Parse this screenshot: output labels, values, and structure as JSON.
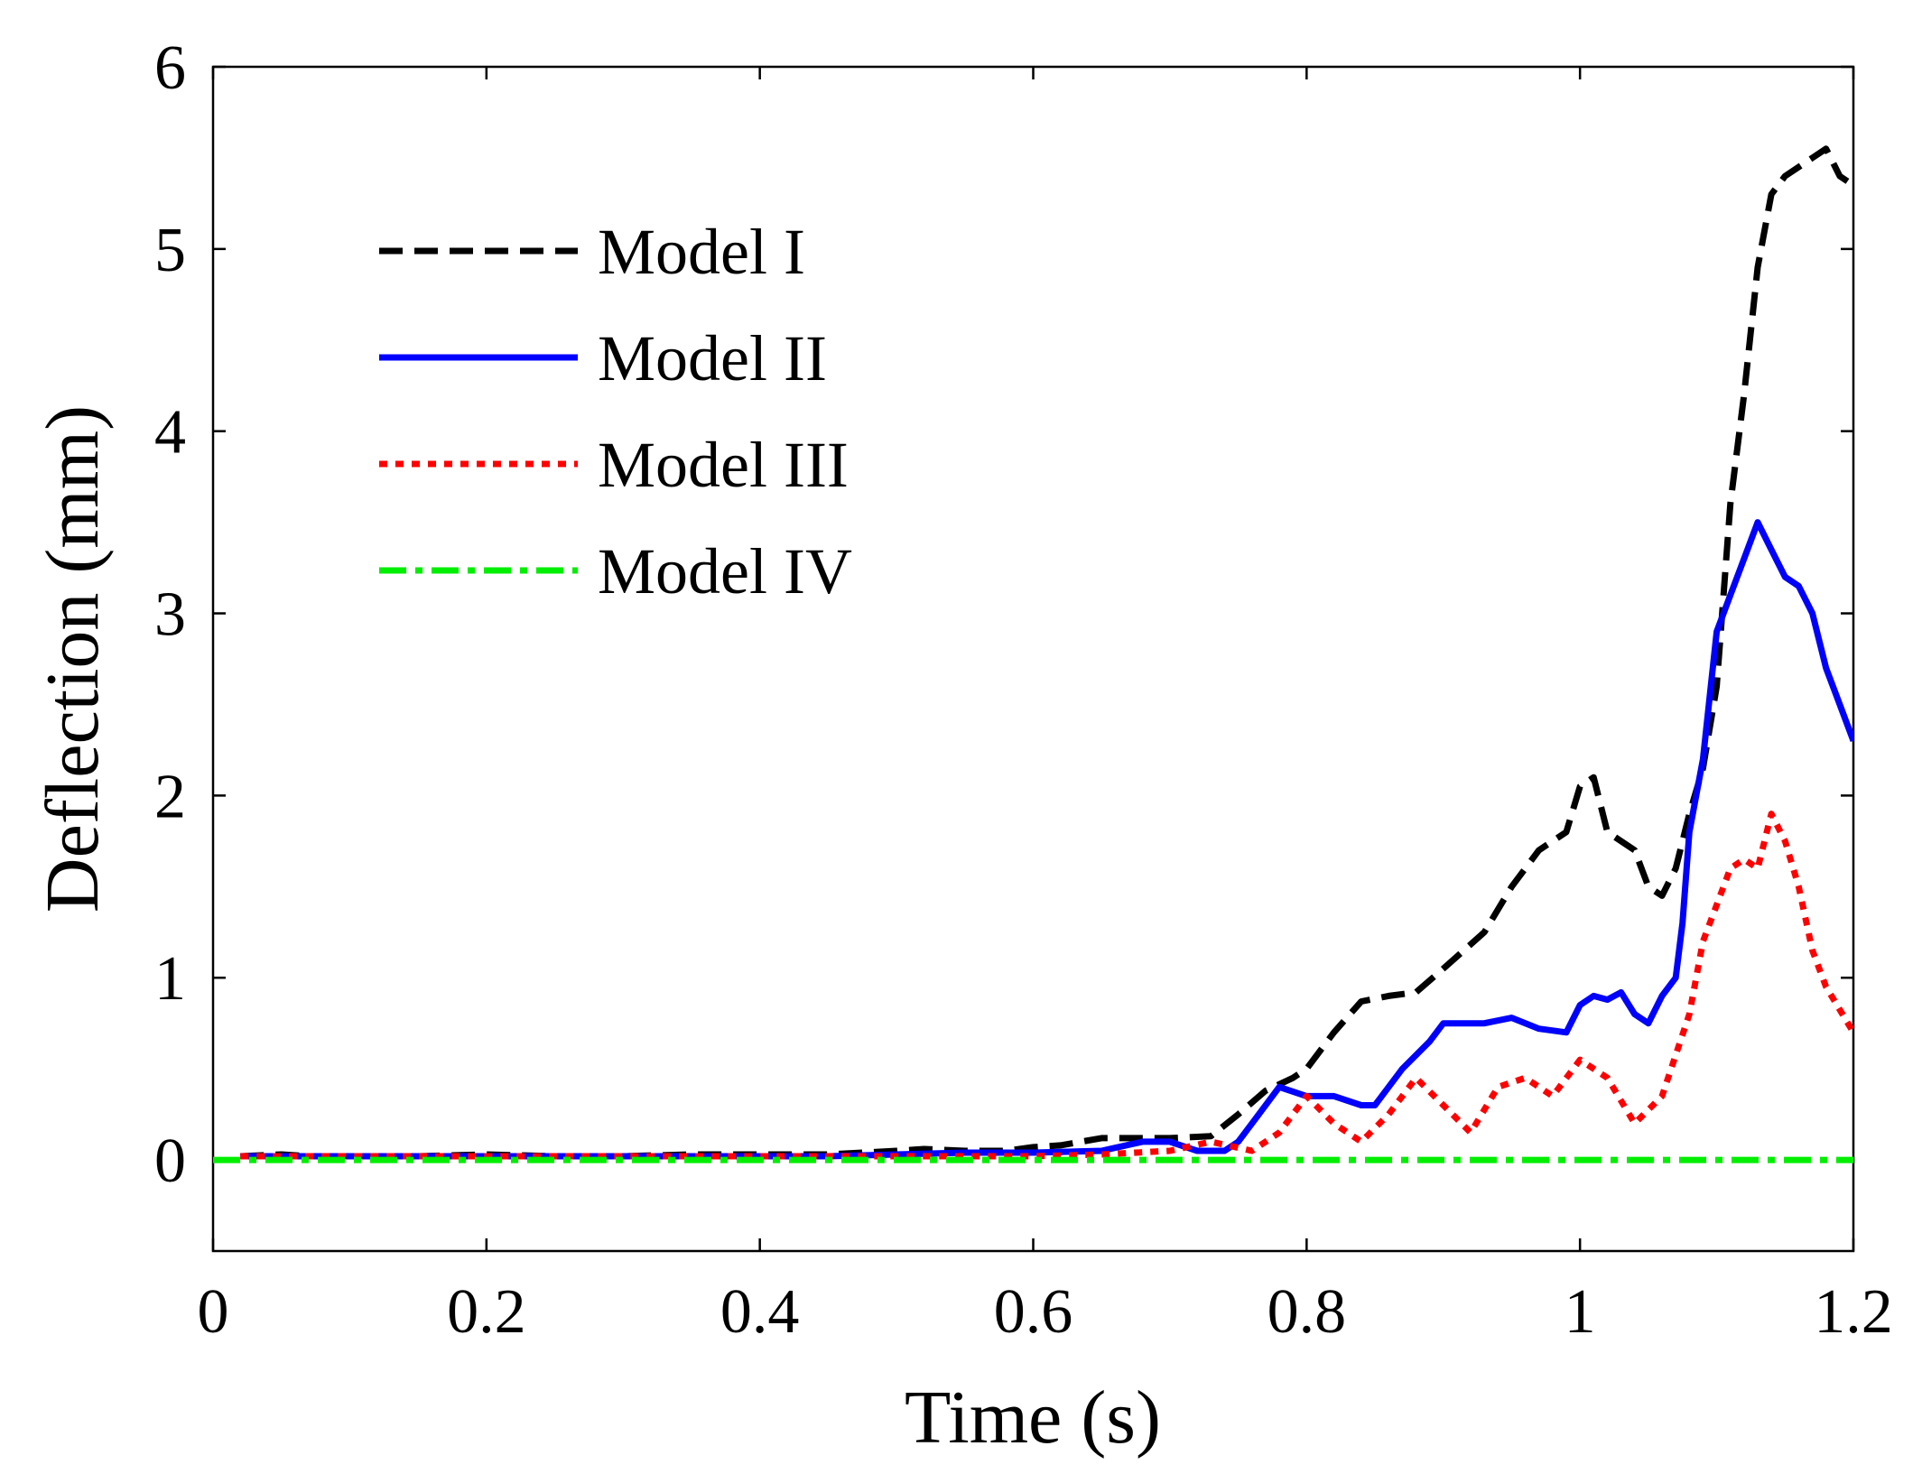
{
  "chart_data": {
    "type": "line",
    "title": "",
    "xlabel": "Time (s)",
    "ylabel": "Deflection (mm)",
    "xlim": [
      0,
      1.2
    ],
    "ylim": [
      -0.5,
      6
    ],
    "xticks": [
      0,
      0.2,
      0.4,
      0.6,
      0.8,
      1,
      1.2
    ],
    "xtick_labels": [
      "0",
      "0.2",
      "0.4",
      "0.6",
      "0.8",
      "1",
      "1.2"
    ],
    "yticks": [
      0,
      1,
      2,
      3,
      4,
      5,
      6
    ],
    "ytick_labels": [
      "0",
      "1",
      "2",
      "3",
      "4",
      "5",
      "6"
    ],
    "grid": false,
    "legend_position": "upper-left",
    "series": [
      {
        "name": "Model I",
        "color": "#000000",
        "style": "dashed",
        "x": [
          0.02,
          0.05,
          0.07,
          0.1,
          0.15,
          0.2,
          0.25,
          0.3,
          0.35,
          0.4,
          0.45,
          0.5,
          0.52,
          0.55,
          0.58,
          0.6,
          0.62,
          0.65,
          0.7,
          0.73,
          0.75,
          0.77,
          0.79,
          0.8,
          0.82,
          0.84,
          0.86,
          0.88,
          0.9,
          0.93,
          0.95,
          0.97,
          0.99,
          1.0,
          1.01,
          1.02,
          1.04,
          1.05,
          1.06,
          1.07,
          1.08,
          1.09,
          1.1,
          1.11,
          1.12,
          1.13,
          1.14,
          1.15,
          1.17,
          1.18,
          1.19,
          1.2
        ],
        "y": [
          0.02,
          0.03,
          0.02,
          0.02,
          0.02,
          0.03,
          0.02,
          0.02,
          0.03,
          0.03,
          0.03,
          0.05,
          0.06,
          0.05,
          0.05,
          0.07,
          0.08,
          0.12,
          0.12,
          0.13,
          0.25,
          0.38,
          0.45,
          0.5,
          0.7,
          0.87,
          0.9,
          0.92,
          1.05,
          1.25,
          1.5,
          1.7,
          1.8,
          2.05,
          2.1,
          1.8,
          1.7,
          1.5,
          1.45,
          1.6,
          1.9,
          2.15,
          2.6,
          3.6,
          4.2,
          4.9,
          5.3,
          5.4,
          5.5,
          5.55,
          5.4,
          5.35
        ]
      },
      {
        "name": "Model II",
        "color": "#0000ff",
        "style": "solid",
        "x": [
          0.02,
          0.05,
          0.1,
          0.15,
          0.2,
          0.25,
          0.3,
          0.35,
          0.4,
          0.45,
          0.5,
          0.55,
          0.6,
          0.65,
          0.68,
          0.7,
          0.72,
          0.74,
          0.75,
          0.76,
          0.78,
          0.8,
          0.82,
          0.84,
          0.85,
          0.87,
          0.89,
          0.9,
          0.91,
          0.93,
          0.95,
          0.97,
          0.99,
          1.0,
          1.01,
          1.02,
          1.03,
          1.04,
          1.05,
          1.06,
          1.07,
          1.075,
          1.08,
          1.09,
          1.1,
          1.11,
          1.12,
          1.13,
          1.14,
          1.15,
          1.16,
          1.17,
          1.18,
          1.19,
          1.2
        ],
        "y": [
          0.02,
          0.02,
          0.02,
          0.02,
          0.02,
          0.02,
          0.02,
          0.02,
          0.02,
          0.02,
          0.03,
          0.04,
          0.04,
          0.05,
          0.1,
          0.1,
          0.05,
          0.05,
          0.1,
          0.2,
          0.4,
          0.35,
          0.35,
          0.3,
          0.3,
          0.5,
          0.65,
          0.75,
          0.75,
          0.75,
          0.78,
          0.72,
          0.7,
          0.85,
          0.9,
          0.88,
          0.92,
          0.8,
          0.75,
          0.9,
          1.0,
          1.3,
          1.8,
          2.2,
          2.9,
          3.1,
          3.3,
          3.5,
          3.35,
          3.2,
          3.15,
          3.0,
          2.7,
          2.5,
          2.3
        ]
      },
      {
        "name": "Model III",
        "color": "#ff0000",
        "style": "dotted",
        "x": [
          0.02,
          0.1,
          0.2,
          0.3,
          0.4,
          0.5,
          0.6,
          0.65,
          0.7,
          0.73,
          0.76,
          0.78,
          0.8,
          0.82,
          0.84,
          0.86,
          0.88,
          0.9,
          0.92,
          0.94,
          0.96,
          0.98,
          1.0,
          1.02,
          1.04,
          1.06,
          1.08,
          1.09,
          1.1,
          1.11,
          1.12,
          1.13,
          1.14,
          1.15,
          1.16,
          1.17,
          1.18,
          1.2
        ],
        "y": [
          0.02,
          0.02,
          0.02,
          0.02,
          0.02,
          0.02,
          0.02,
          0.03,
          0.05,
          0.1,
          0.05,
          0.15,
          0.35,
          0.2,
          0.1,
          0.25,
          0.45,
          0.3,
          0.15,
          0.4,
          0.45,
          0.35,
          0.55,
          0.45,
          0.2,
          0.35,
          0.8,
          1.2,
          1.4,
          1.6,
          1.65,
          1.6,
          1.9,
          1.75,
          1.5,
          1.15,
          0.95,
          0.7
        ]
      },
      {
        "name": "Model IV",
        "color": "#00ee00",
        "style": "dashdot",
        "x": [
          0.0,
          1.2
        ],
        "y": [
          0.0,
          0.0
        ]
      }
    ]
  }
}
